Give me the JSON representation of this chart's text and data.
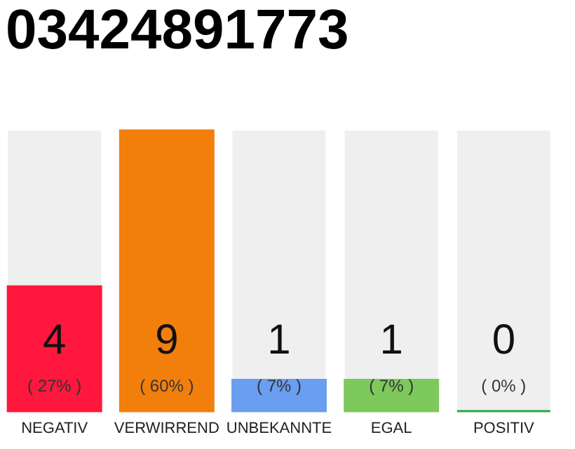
{
  "chart_data": {
    "type": "bar",
    "title": "03424891773",
    "categories": [
      "NEGATIV",
      "VERWIRREND",
      "UNBEKANNTE",
      "EGAL",
      "POSITIV"
    ],
    "values": [
      4,
      9,
      1,
      1,
      0
    ],
    "colors": [
      "#ff173d",
      "#f27f0c",
      "#699ef0",
      "#7dc95c",
      "#27a844"
    ],
    "ylim": [
      0,
      9
    ],
    "tick_labels": "x",
    "data_labels": true,
    "annotations": [
      "( 27% )",
      "( 60% )",
      "( 7% )",
      "( 7% )",
      "( 0% )"
    ]
  }
}
